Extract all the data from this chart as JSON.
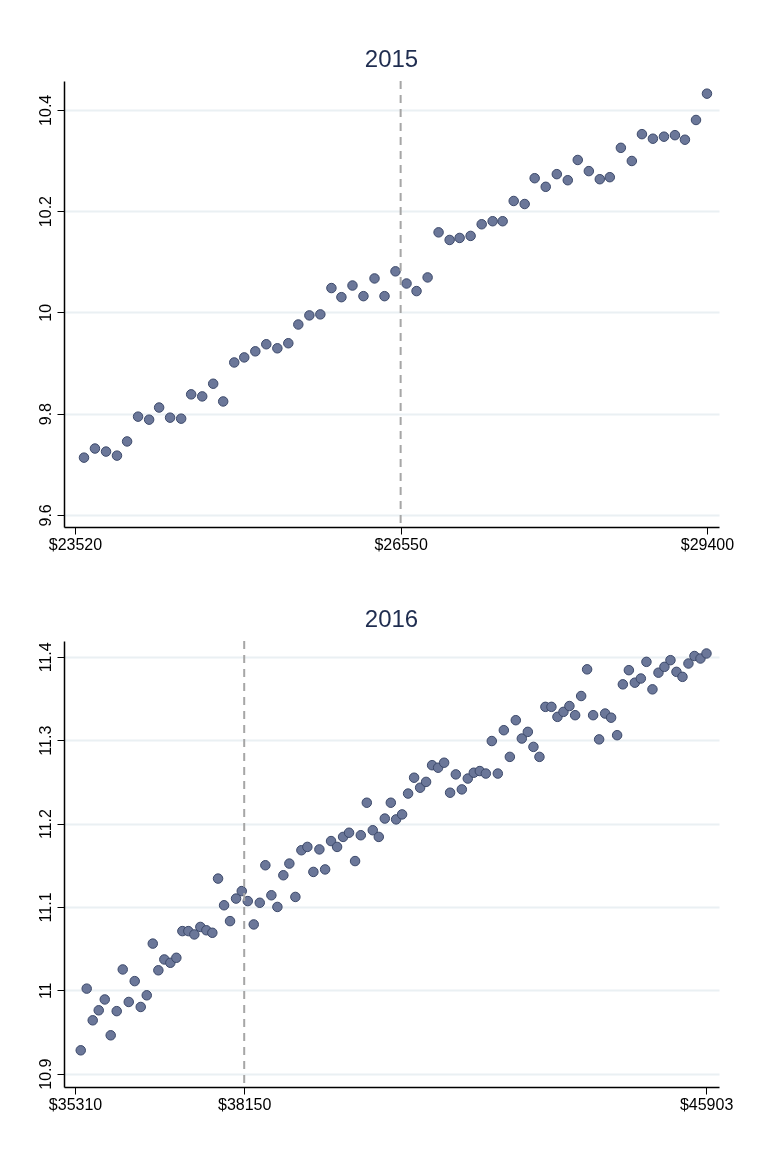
{
  "chart_data": [
    {
      "type": "scatter",
      "title": "2015",
      "marker": "circle",
      "grid": "y",
      "xlim": [
        23418,
        29512
      ],
      "ylim": [
        9.576,
        10.457
      ],
      "xticks": [
        {
          "value": 23520,
          "label": "$23520"
        },
        {
          "value": 26550,
          "label": "$26550"
        },
        {
          "value": 29400,
          "label": "$29400"
        }
      ],
      "yticks": [
        9.6,
        9.8,
        10,
        10.2,
        10.4
      ],
      "ref_lines": [
        {
          "axis": "x",
          "value": 26550,
          "label": null,
          "color": "#a6a6a6",
          "line_style": "dashed"
        }
      ],
      "series": [
        {
          "color": "#6b7799",
          "x": [
            23604,
            23706,
            23809,
            23911,
            24005,
            24107,
            24210,
            24303,
            24405,
            24508,
            24601,
            24704,
            24806,
            24899,
            25002,
            25095,
            25198,
            25300,
            25403,
            25505,
            25598,
            25701,
            25803,
            25906,
            25999,
            26102,
            26204,
            26307,
            26400,
            26502,
            26605,
            26698,
            26801,
            26903,
            27006,
            27099,
            27201,
            27304,
            27406,
            27499,
            27602,
            27704,
            27797,
            27900,
            28003,
            28105,
            28198,
            28301,
            28403,
            28496,
            28599,
            28701,
            28795,
            28897,
            29000,
            29102,
            29195,
            29298,
            29400
          ],
          "values": [
            9.713,
            9.731,
            9.725,
            9.717,
            9.745,
            9.794,
            9.788,
            9.812,
            9.792,
            9.79,
            9.838,
            9.834,
            9.859,
            9.824,
            9.901,
            9.911,
            9.923,
            9.937,
            9.929,
            9.939,
            9.976,
            9.994,
            9.996,
            10.048,
            10.03,
            10.053,
            10.032,
            10.067,
            10.032,
            10.081,
            10.057,
            10.042,
            10.069,
            10.158,
            10.143,
            10.147,
            10.151,
            10.174,
            10.18,
            10.18,
            10.22,
            10.214,
            10.265,
            10.248,
            10.273,
            10.261,
            10.301,
            10.279,
            10.263,
            10.267,
            10.325,
            10.299,
            10.352,
            10.343,
            10.347,
            10.35,
            10.341,
            10.38,
            10.432
          ]
        }
      ]
    },
    {
      "type": "scatter",
      "title": "2016",
      "marker": "circle",
      "grid": "y",
      "xlim": [
        35125,
        46120
      ],
      "ylim": [
        10.884,
        11.419
      ],
      "xticks": [
        {
          "value": 35310,
          "label": "$35310"
        },
        {
          "value": 38150,
          "label": "$38150"
        },
        {
          "value": 45903,
          "label": "$45903"
        }
      ],
      "yticks": [
        10.9,
        11,
        11.1,
        11.2,
        11.3,
        11.4
      ],
      "ref_lines": [
        {
          "axis": "x",
          "value": 38150,
          "label": null,
          "color": "#a6a6a6",
          "line_style": "dashed"
        }
      ],
      "series": [
        {
          "color": "#6b7799",
          "x": [
            35406,
            35506,
            35607,
            35708,
            35809,
            35909,
            36010,
            36111,
            36212,
            36312,
            36413,
            36514,
            36615,
            36709,
            36809,
            36910,
            37011,
            37112,
            37212,
            37313,
            37414,
            37515,
            37615,
            37711,
            37812,
            37912,
            38013,
            38109,
            38210,
            38310,
            38411,
            38505,
            38606,
            38707,
            38807,
            38908,
            39009,
            39110,
            39210,
            39311,
            39412,
            39508,
            39608,
            39709,
            39810,
            39910,
            40011,
            40107,
            40208,
            40308,
            40409,
            40510,
            40611,
            40700,
            40800,
            40901,
            41002,
            41103,
            41203,
            41304,
            41405,
            41506,
            41606,
            41702,
            41803,
            41903,
            42004,
            42105,
            42206,
            42306,
            42407,
            42508,
            42609,
            42709,
            42810,
            42911,
            43005,
            43106,
            43206,
            43307,
            43408,
            43509,
            43609,
            43705,
            43806,
            43906,
            44007,
            44108,
            44209,
            44309,
            44410,
            44506,
            44607,
            44707,
            44808,
            44902,
            45003,
            45104,
            45204,
            45305,
            45406,
            45507,
            45607,
            45708,
            45809,
            45910
          ],
          "values": [
            10.928,
            11.002,
            10.964,
            10.976,
            10.989,
            10.946,
            10.975,
            11.025,
            10.986,
            11.011,
            10.98,
            10.994,
            11.056,
            11.024,
            11.037,
            11.033,
            11.039,
            11.071,
            11.071,
            11.067,
            11.076,
            11.072,
            11.069,
            11.134,
            11.102,
            11.083,
            11.11,
            11.119,
            11.107,
            11.079,
            11.105,
            11.15,
            11.114,
            11.1,
            11.138,
            11.152,
            11.112,
            11.168,
            11.172,
            11.142,
            11.169,
            11.145,
            11.179,
            11.172,
            11.184,
            11.189,
            11.155,
            11.186,
            11.225,
            11.192,
            11.184,
            11.206,
            11.225,
            11.205,
            11.211,
            11.236,
            11.255,
            11.243,
            11.25,
            11.27,
            11.267,
            11.273,
            11.237,
            11.259,
            11.241,
            11.254,
            11.261,
            11.263,
            11.26,
            11.299,
            11.26,
            11.312,
            11.28,
            11.324,
            11.302,
            11.31,
            11.292,
            11.28,
            11.34,
            11.34,
            11.328,
            11.334,
            11.341,
            11.33,
            11.353,
            11.385,
            11.33,
            11.301,
            11.332,
            11.327,
            11.306,
            11.367,
            11.384,
            11.369,
            11.374,
            11.394,
            11.361,
            11.381,
            11.388,
            11.396,
            11.382,
            11.376,
            11.392,
            11.401,
            11.398,
            11.404
          ]
        }
      ]
    }
  ]
}
